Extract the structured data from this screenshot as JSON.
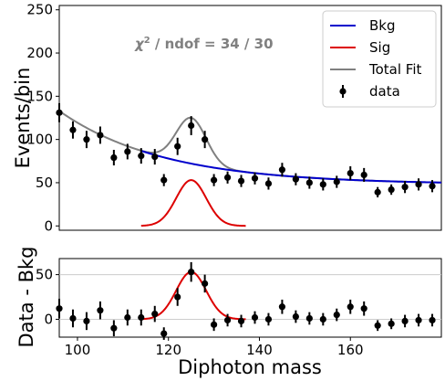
{
  "chart_data": [
    {
      "type": "scatter",
      "panel": "top",
      "ylabel": "Events/bin",
      "xlabel": "",
      "xlim": [
        96,
        180
      ],
      "ylim": [
        -5,
        255
      ],
      "yticks": [
        0,
        50,
        100,
        150,
        200,
        250
      ],
      "annotation": {
        "chi_symbol": "χ",
        "chi_sup": "2",
        "chi_text": " / ndof = 34 / 30"
      },
      "legend": {
        "placement": "top-right",
        "entries": [
          {
            "label": "Bkg",
            "color": "#0000cc",
            "kind": "line"
          },
          {
            "label": "Sig",
            "color": "#dd0000",
            "kind": "line"
          },
          {
            "label": "Total Fit",
            "color": "#808080",
            "kind": "line"
          },
          {
            "label": "data",
            "color": "#000000",
            "kind": "errorbar"
          }
        ]
      },
      "series": [
        {
          "name": "data",
          "x": [
            96,
            99,
            102,
            105,
            108,
            111,
            114,
            117,
            119,
            122,
            125,
            128,
            130,
            133,
            136,
            139,
            142,
            145,
            148,
            151,
            154,
            157,
            160,
            163,
            166,
            169,
            172,
            175,
            178
          ],
          "y": [
            131,
            111,
            100,
            105,
            79,
            86,
            81,
            80,
            53,
            92,
            116,
            100,
            53,
            56,
            52,
            55,
            49,
            65,
            54,
            50,
            48,
            51,
            61,
            59,
            39,
            42,
            45,
            48,
            46
          ],
          "yerr": [
            11,
            10,
            10,
            10,
            9,
            9,
            9,
            9,
            7,
            10,
            11,
            10,
            7,
            7,
            7,
            7,
            7,
            8,
            7,
            7,
            7,
            7,
            8,
            8,
            6,
            6,
            7,
            7,
            7
          ]
        }
      ],
      "fits": {
        "bkg": {
          "color": "#0000cc",
          "x_range": [
            114,
            180
          ],
          "model": "exponential",
          "p0": 48,
          "amp": 85,
          "x0": 96,
          "decay": 23
        },
        "sig": {
          "color": "#dd0000",
          "x_range": [
            114,
            137
          ],
          "center": 125,
          "sigma": 3.3,
          "amplitude": 53
        },
        "total": {
          "color": "#808080",
          "x_range": [
            96,
            180
          ]
        }
      }
    },
    {
      "type": "scatter",
      "panel": "bottom",
      "ylabel": "Data - Bkg",
      "xlabel": "Diphoton mass",
      "xlim": [
        96,
        180
      ],
      "ylim": [
        -20,
        68
      ],
      "yticks": [
        0,
        50
      ],
      "xticks": [
        100,
        120,
        140,
        160
      ],
      "series": [
        {
          "name": "data",
          "x": [
            96,
            99,
            102,
            105,
            108,
            111,
            114,
            117,
            119,
            122,
            125,
            128,
            130,
            133,
            136,
            139,
            142,
            145,
            148,
            151,
            154,
            157,
            160,
            163,
            166,
            169,
            172,
            175,
            178
          ],
          "y": [
            12,
            1,
            -2,
            10,
            -10,
            2,
            2,
            6,
            -16,
            25,
            53,
            40,
            -6,
            -1,
            -2,
            2,
            0,
            14,
            3,
            1,
            0,
            5,
            14,
            12,
            -7,
            -5,
            -2,
            -1,
            -1
          ],
          "yerr": [
            11,
            10,
            10,
            10,
            9,
            9,
            9,
            9,
            7,
            10,
            11,
            10,
            7,
            7,
            7,
            7,
            7,
            8,
            7,
            7,
            7,
            7,
            8,
            8,
            6,
            6,
            7,
            7,
            7
          ]
        }
      ],
      "fits": {
        "sig": {
          "color": "#dd0000",
          "x_range": [
            114,
            137
          ],
          "center": 125,
          "sigma": 3.3,
          "amplitude": 53
        }
      }
    }
  ]
}
